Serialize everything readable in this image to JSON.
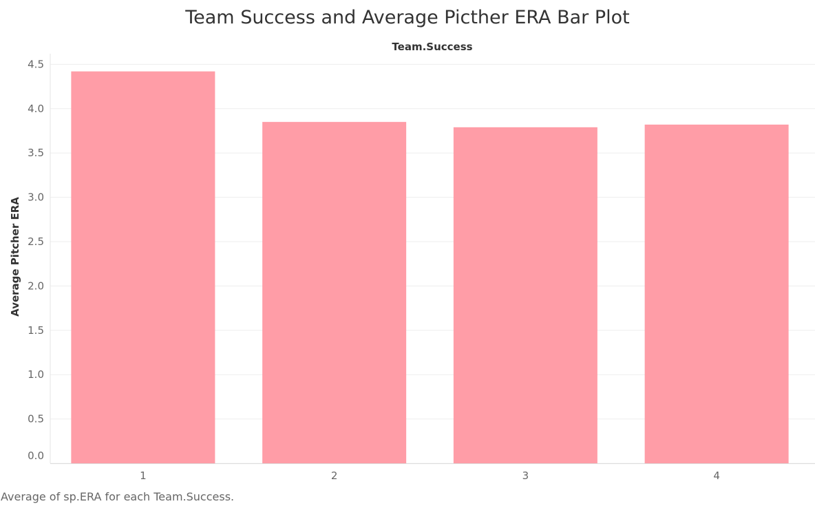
{
  "chart_data": {
    "type": "bar",
    "title": "Team Success and Average Picther ERA Bar Plot",
    "column_header": "Team.Success",
    "xlabel": "",
    "ylabel": "Average Pitcher ERA",
    "categories": [
      "1",
      "2",
      "3",
      "4"
    ],
    "values": [
      4.42,
      3.85,
      3.79,
      3.82
    ],
    "ylim": [
      0,
      4.6
    ],
    "yticks": [
      0.0,
      0.5,
      1.0,
      1.5,
      2.0,
      2.5,
      3.0,
      3.5,
      4.0,
      4.5
    ],
    "ytick_labels": [
      "0.0",
      "0.5",
      "1.0",
      "1.5",
      "2.0",
      "2.5",
      "3.0",
      "3.5",
      "4.0",
      "4.5"
    ],
    "grid": true,
    "legend": "none",
    "bar_color": "#ff9da7"
  },
  "footnote": "Average of sp.ERA for each Team.Success."
}
